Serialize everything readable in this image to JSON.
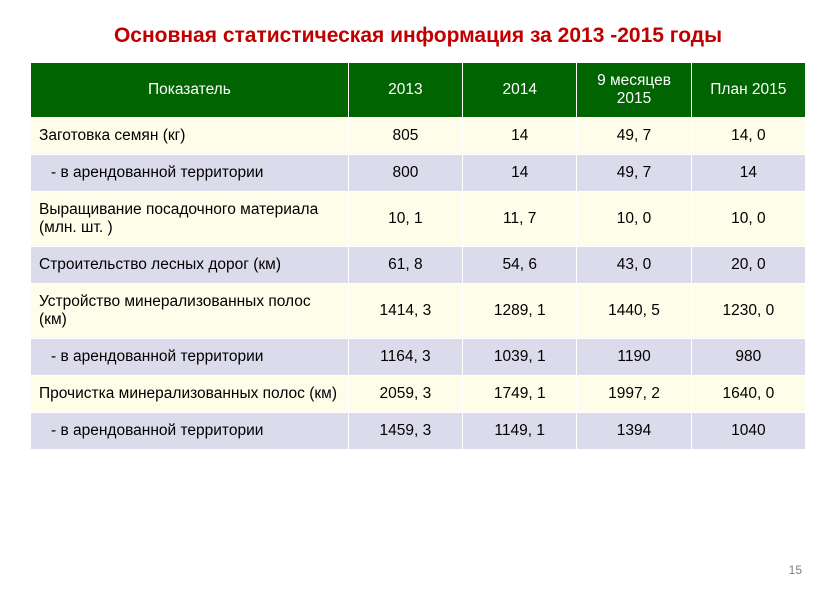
{
  "title": {
    "text": "Основная статистическая информация  за 2013 -2015 годы",
    "color": "#c00000",
    "fontsize_pt": 16
  },
  "table": {
    "header_bg": "#006400",
    "header_fg": "#ffffff",
    "row_colors": [
      "#fdfde9",
      "#dbdbec"
    ],
    "border_color": "#ffffff",
    "cell_fontsize_pt": 12,
    "columns": [
      {
        "label": "Показатель"
      },
      {
        "label": "2013"
      },
      {
        "label": "2014"
      },
      {
        "label": "9 месяцев 2015"
      },
      {
        "label": "План 2015"
      }
    ],
    "rows": [
      {
        "indent": false,
        "label": "Заготовка семян (кг)",
        "c1": "805",
        "c2": "14",
        "c3": "49, 7",
        "c4": "14, 0"
      },
      {
        "indent": true,
        "label": "- в арендованной территории",
        "c1": "800",
        "c2": "14",
        "c3": "49, 7",
        "c4": "14"
      },
      {
        "indent": false,
        "label": "Выращивание посадочного материала (млн. шт. )",
        "c1": "10, 1",
        "c2": "11, 7",
        "c3": "10, 0",
        "c4": "10, 0"
      },
      {
        "indent": false,
        "label": "Строительство лесных дорог (км)",
        "c1": "61, 8",
        "c2": "54, 6",
        "c3": "43, 0",
        "c4": "20, 0"
      },
      {
        "indent": false,
        "label": "Устройство минерализованных полос (км)",
        "c1": "1414, 3",
        "c2": "1289, 1",
        "c3": "1440, 5",
        "c4": "1230, 0"
      },
      {
        "indent": true,
        "label": "- в арендованной территории",
        "c1": "1164, 3",
        "c2": "1039, 1",
        "c3": "1190",
        "c4": "980"
      },
      {
        "indent": false,
        "label": "Прочистка минерализованных полос (км)",
        "c1": "2059, 3",
        "c2": "1749, 1",
        "c3": "1997, 2",
        "c4": "1640, 0"
      },
      {
        "indent": true,
        "label": "- в арендованной территории",
        "c1": "1459, 3",
        "c2": "1149, 1",
        "c3": "1394",
        "c4": "1040"
      }
    ]
  },
  "page_number": "15"
}
